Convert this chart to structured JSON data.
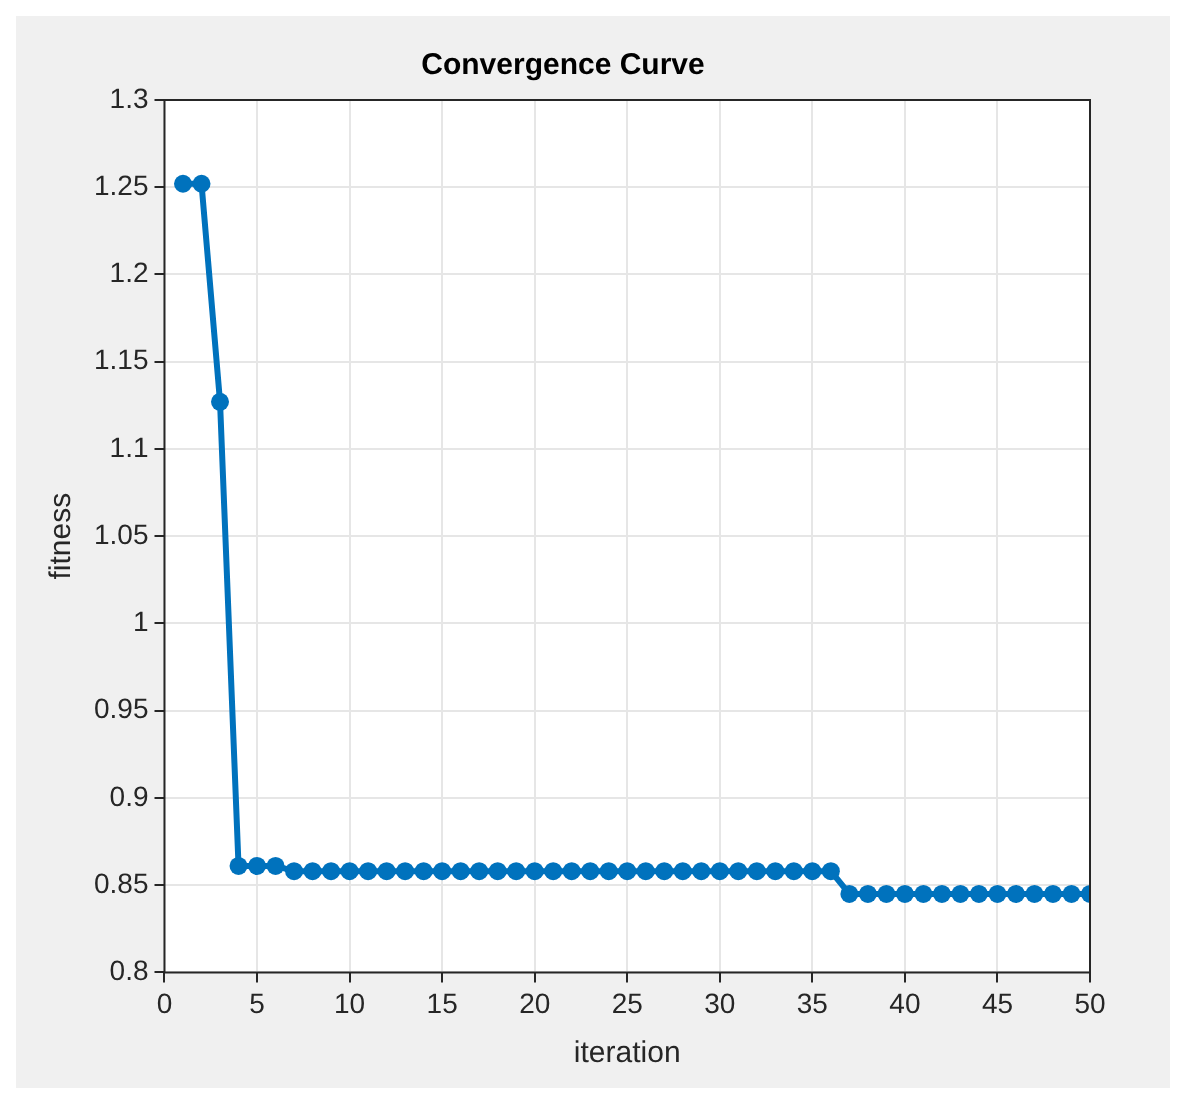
{
  "chart_data": {
    "type": "line",
    "title": "Convergence Curve",
    "xlabel": "iteration",
    "ylabel": "fitness",
    "x": [
      1,
      2,
      3,
      4,
      5,
      6,
      7,
      8,
      9,
      10,
      11,
      12,
      13,
      14,
      15,
      16,
      17,
      18,
      19,
      20,
      21,
      22,
      23,
      24,
      25,
      26,
      27,
      28,
      29,
      30,
      31,
      32,
      33,
      34,
      35,
      36,
      37,
      38,
      39,
      40,
      41,
      42,
      43,
      44,
      45,
      46,
      47,
      48,
      49,
      50
    ],
    "series": [
      {
        "color": "#0072bd",
        "values": [
          1.252,
          1.252,
          1.127,
          0.861,
          0.861,
          0.861,
          0.858,
          0.858,
          0.858,
          0.858,
          0.858,
          0.858,
          0.858,
          0.858,
          0.858,
          0.858,
          0.858,
          0.858,
          0.858,
          0.858,
          0.858,
          0.858,
          0.858,
          0.858,
          0.858,
          0.858,
          0.858,
          0.858,
          0.858,
          0.858,
          0.858,
          0.858,
          0.858,
          0.858,
          0.858,
          0.858,
          0.845,
          0.845,
          0.845,
          0.845,
          0.845,
          0.845,
          0.845,
          0.845,
          0.845,
          0.845,
          0.845,
          0.845,
          0.845,
          0.845
        ]
      }
    ],
    "xlim": [
      0,
      50
    ],
    "xticks": [
      0,
      5,
      10,
      15,
      20,
      25,
      30,
      35,
      40,
      45,
      50
    ],
    "ylim": [
      0.8,
      1.3
    ],
    "yticks": [
      0.8,
      0.85,
      0.9,
      0.95,
      1,
      1.05,
      1.1,
      1.15,
      1.2,
      1.25,
      1.3
    ],
    "grid": true,
    "marker": "circle",
    "line_style": "solid",
    "legend": false
  }
}
